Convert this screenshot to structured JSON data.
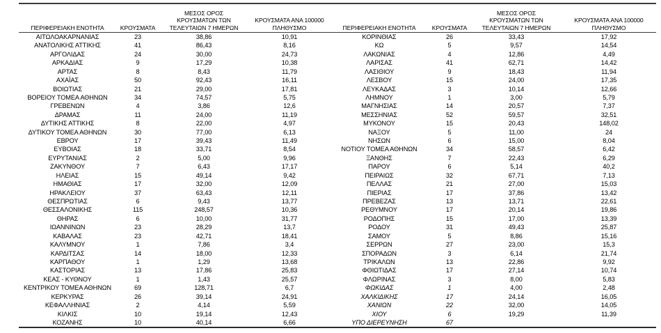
{
  "colors": {
    "background": "#ffffff",
    "text": "#000000",
    "border": "#3a3a3a"
  },
  "table": {
    "header": {
      "region": "ΠΕΡΙΦΕΡΕΙΑΚΗ ΕΝΟΤΗΤΑ",
      "cases": "ΚΡΟΥΣΜΑΤΑ",
      "avg7_lines": [
        "ΜΕΣΟΣ ΟΡΟΣ",
        "ΚΡΟΥΣΜΑΤΩΝ ΤΩΝ",
        "ΤΕΛΕΥΤΑΙΩΝ 7 ΗΜΕΡΩΝ"
      ],
      "per100k_lines": [
        "ΚΡΟΥΣΜΑΤΑ ΑΝΑ 100000",
        "ΠΛΗΘΥΣΜΟ"
      ]
    },
    "left_rows": [
      {
        "region": "ΑΙΤΩΛΟΑΚΑΡΝΑΝΙΑΣ",
        "cases": "23",
        "avg7": "38,86",
        "per100k": "10,91"
      },
      {
        "region": "ΑΝΑΤΟΛΙΚΗΣ ΑΤΤΙΚΗΣ",
        "cases": "41",
        "avg7": "86,43",
        "per100k": "8,16"
      },
      {
        "region": "ΑΡΓΟΛΙΔΑΣ",
        "cases": "24",
        "avg7": "30,00",
        "per100k": "24,73"
      },
      {
        "region": "ΑΡΚΑΔΙΑΣ",
        "cases": "9",
        "avg7": "17,29",
        "per100k": "10,38"
      },
      {
        "region": "ΑΡΤΑΣ",
        "cases": "8",
        "avg7": "8,43",
        "per100k": "11,79"
      },
      {
        "region": "ΑΧΑΪΑΣ",
        "cases": "50",
        "avg7": "92,43",
        "per100k": "16,11"
      },
      {
        "region": "ΒΟΙΩΤΙΑΣ",
        "cases": "21",
        "avg7": "29,00",
        "per100k": "17,81"
      },
      {
        "region": "ΒΟΡΕΙΟΥ ΤΟΜΕΑ ΑΘΗΝΩΝ",
        "cases": "34",
        "avg7": "74,57",
        "per100k": "5,75"
      },
      {
        "region": "ΓΡΕΒΕΝΩΝ",
        "cases": "4",
        "avg7": "3,86",
        "per100k": "12,6"
      },
      {
        "region": "ΔΡΑΜΑΣ",
        "cases": "11",
        "avg7": "24,00",
        "per100k": "11,19"
      },
      {
        "region": "ΔΥΤΙΚΗΣ ΑΤΤΙΚΗΣ",
        "cases": "8",
        "avg7": "22,00",
        "per100k": "4,97"
      },
      {
        "region": "ΔΥΤΙΚΟΥ ΤΟΜΕΑ ΑΘΗΝΩΝ",
        "cases": "30",
        "avg7": "77,00",
        "per100k": "6,13"
      },
      {
        "region": "ΕΒΡΟΥ",
        "cases": "17",
        "avg7": "39,43",
        "per100k": "11,49"
      },
      {
        "region": "ΕΥΒΟΙΑΣ",
        "cases": "18",
        "avg7": "33,71",
        "per100k": "8,54"
      },
      {
        "region": "ΕΥΡΥΤΑΝΙΑΣ",
        "cases": "2",
        "avg7": "5,00",
        "per100k": "9,96"
      },
      {
        "region": "ΖΑΚΥΝΘΟΥ",
        "cases": "7",
        "avg7": "6,43",
        "per100k": "17,17"
      },
      {
        "region": "ΗΛΕΙΑΣ",
        "cases": "15",
        "avg7": "49,14",
        "per100k": "9,42"
      },
      {
        "region": "ΗΜΑΘΙΑΣ",
        "cases": "17",
        "avg7": "32,00",
        "per100k": "12,09"
      },
      {
        "region": "ΗΡΑΚΛΕΙΟΥ",
        "cases": "37",
        "avg7": "63,43",
        "per100k": "12,11"
      },
      {
        "region": "ΘΕΣΠΡΩΤΙΑΣ",
        "cases": "6",
        "avg7": "9,43",
        "per100k": "13,77"
      },
      {
        "region": "ΘΕΣΣΑΛΟΝΙΚΗΣ",
        "cases": "115",
        "avg7": "248,57",
        "per100k": "10,36"
      },
      {
        "region": "ΘΗΡΑΣ",
        "cases": "6",
        "avg7": "10,00",
        "per100k": "31,77"
      },
      {
        "region": "ΙΩΑΝΝΙΝΩΝ",
        "cases": "23",
        "avg7": "28,29",
        "per100k": "13,7"
      },
      {
        "region": "ΚΑΒΑΛΑΣ",
        "cases": "23",
        "avg7": "42,71",
        "per100k": "18,41"
      },
      {
        "region": "ΚΑΛΥΜΝΟΥ",
        "cases": "1",
        "avg7": "7,86",
        "per100k": "3,4"
      },
      {
        "region": "ΚΑΡΔΙΤΣΑΣ",
        "cases": "14",
        "avg7": "18,00",
        "per100k": "12,33"
      },
      {
        "region": "ΚΑΡΠΑΘΟΥ",
        "cases": "1",
        "avg7": "1,29",
        "per100k": "13,68"
      },
      {
        "region": "ΚΑΣΤΟΡΙΑΣ",
        "cases": "13",
        "avg7": "17,86",
        "per100k": "25,83"
      },
      {
        "region": "ΚΕΑΣ - ΚΥΘΝΟΥ",
        "cases": "1",
        "avg7": "1,43",
        "per100k": "25,57"
      },
      {
        "region": "ΚΕΝΤΡΙΚΟΥ ΤΟΜΕΑ ΑΘΗΝΩΝ",
        "cases": "69",
        "avg7": "128,71",
        "per100k": "6,7"
      },
      {
        "region": "ΚΕΡΚΥΡΑΣ",
        "cases": "26",
        "avg7": "39,14",
        "per100k": "24,91"
      },
      {
        "region": "ΚΕΦΑΛΛΗΝΙΑΣ",
        "cases": "2",
        "avg7": "4,14",
        "per100k": "5,59"
      },
      {
        "region": "ΚΙΛΚΙΣ",
        "cases": "10",
        "avg7": "19,14",
        "per100k": "12,43"
      },
      {
        "region": "ΚΟΖΑΝΗΣ",
        "cases": "10",
        "avg7": "40,14",
        "per100k": "6,66"
      }
    ],
    "right_rows": [
      {
        "region": "ΚΟΡΙΝΘΙΑΣ",
        "cases": "26",
        "avg7": "33,43",
        "per100k": "17,92"
      },
      {
        "region": "ΚΩ",
        "cases": "5",
        "avg7": "9,57",
        "per100k": "14,54"
      },
      {
        "region": "ΛΑΚΩΝΙΑΣ",
        "cases": "4",
        "avg7": "12,86",
        "per100k": "4,49"
      },
      {
        "region": "ΛΑΡΙΣΑΣ",
        "cases": "41",
        "avg7": "62,71",
        "per100k": "14,42"
      },
      {
        "region": "ΛΑΣΙΘΙΟΥ",
        "cases": "9",
        "avg7": "18,43",
        "per100k": "11,94"
      },
      {
        "region": "ΛΕΣΒΟΥ",
        "cases": "15",
        "avg7": "24,00",
        "per100k": "17,35"
      },
      {
        "region": "ΛΕΥΚΑΔΑΣ",
        "cases": "3",
        "avg7": "10,14",
        "per100k": "12,66"
      },
      {
        "region": "ΛΗΜΝΟΥ",
        "cases": "1",
        "avg7": "3,00",
        "per100k": "5,79"
      },
      {
        "region": "ΜΑΓΝΗΣΙΑΣ",
        "cases": "14",
        "avg7": "20,57",
        "per100k": "7,37"
      },
      {
        "region": "ΜΕΣΣΗΝΙΑΣ",
        "cases": "52",
        "avg7": "59,57",
        "per100k": "32,51"
      },
      {
        "region": "ΜΥΚΟΝΟΥ",
        "cases": "15",
        "avg7": "20,43",
        "per100k": "148,02"
      },
      {
        "region": "ΝΑΞΟΥ",
        "cases": "5",
        "avg7": "11,00",
        "per100k": "24"
      },
      {
        "region": "ΝΗΣΩΝ",
        "cases": "6",
        "avg7": "15,00",
        "per100k": "8,04"
      },
      {
        "region": "ΝΟΤΙΟΥ ΤΟΜΕΑ ΑΘΗΝΩΝ",
        "cases": "34",
        "avg7": "58,57",
        "per100k": "6,42"
      },
      {
        "region": "ΞΑΝΘΗΣ",
        "cases": "7",
        "avg7": "22,43",
        "per100k": "6,29"
      },
      {
        "region": "ΠΑΡΟΥ",
        "cases": "6",
        "avg7": "5,14",
        "per100k": "40,2"
      },
      {
        "region": "ΠΕΙΡΑΙΩΣ",
        "cases": "32",
        "avg7": "67,71",
        "per100k": "7,13"
      },
      {
        "region": "ΠΕΛΛΑΣ",
        "cases": "21",
        "avg7": "27,00",
        "per100k": "15,03"
      },
      {
        "region": "ΠΙΕΡΙΑΣ",
        "cases": "17",
        "avg7": "37,86",
        "per100k": "13,42"
      },
      {
        "region": "ΠΡΕΒΕΖΑΣ",
        "cases": "13",
        "avg7": "13,71",
        "per100k": "22,61"
      },
      {
        "region": "ΡΕΘΥΜΝΟΥ",
        "cases": "17",
        "avg7": "20,14",
        "per100k": "19,86"
      },
      {
        "region": "ΡΟΔΟΠΗΣ",
        "cases": "15",
        "avg7": "17,00",
        "per100k": "13,39"
      },
      {
        "region": "ΡΟΔΟΥ",
        "cases": "31",
        "avg7": "49,43",
        "per100k": "25,87"
      },
      {
        "region": "ΣΑΜΟΥ",
        "cases": "5",
        "avg7": "8,86",
        "per100k": "15,16"
      },
      {
        "region": "ΣΕΡΡΩΝ",
        "cases": "27",
        "avg7": "23,00",
        "per100k": "15,3"
      },
      {
        "region": "ΣΠΟΡΑΔΩΝ",
        "cases": "3",
        "avg7": "6,14",
        "per100k": "21,74"
      },
      {
        "region": "ΤΡΙΚΑΛΩΝ",
        "cases": "13",
        "avg7": "22,86",
        "per100k": "9,92"
      },
      {
        "region": "ΦΘΙΩΤΙΔΑΣ",
        "cases": "17",
        "avg7": "27,14",
        "per100k": "10,74"
      },
      {
        "region": "ΦΛΩΡΙΝΑΣ",
        "cases": "3",
        "avg7": "8,00",
        "per100k": "5,83"
      },
      {
        "region": "ΦΩΚΙΔΑΣ",
        "cases": "1",
        "avg7": "4,00",
        "per100k": "2,48",
        "italic": true
      },
      {
        "region": "ΧΑΛΚΙΔΙΚΗΣ",
        "cases": "17",
        "avg7": "24,14",
        "per100k": "16,05",
        "italic": true
      },
      {
        "region": "ΧΑΝΙΩΝ",
        "cases": "22",
        "avg7": "32,00",
        "per100k": "14,05",
        "italic": true
      },
      {
        "region": "ΧΙΟΥ",
        "cases": "6",
        "avg7": "19,29",
        "per100k": "11,39",
        "italic": true
      },
      {
        "region": "ΥΠΟ ΔΙΕΡΕΥΝΗΣΗ",
        "cases": "67",
        "avg7": "",
        "per100k": "",
        "italic": true
      }
    ]
  }
}
